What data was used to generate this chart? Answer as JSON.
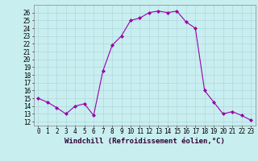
{
  "title": "",
  "xlabel": "Windchill (Refroidissement éolien,°C)",
  "x": [
    0,
    1,
    2,
    3,
    4,
    5,
    6,
    7,
    8,
    9,
    10,
    11,
    12,
    13,
    14,
    15,
    16,
    17,
    18,
    19,
    20,
    21,
    22,
    23
  ],
  "y": [
    15.0,
    14.5,
    13.8,
    13.0,
    14.0,
    14.3,
    12.8,
    18.5,
    21.8,
    23.0,
    25.0,
    25.3,
    26.0,
    26.2,
    26.0,
    26.2,
    24.8,
    24.0,
    16.0,
    14.5,
    13.0,
    13.3,
    12.8,
    12.2
  ],
  "line_color": "#9900aa",
  "marker": "D",
  "marker_size": 2,
  "bg_color": "#c8eef0",
  "ylim": [
    11.5,
    27.0
  ],
  "xlim": [
    -0.5,
    23.5
  ],
  "yticks": [
    12,
    13,
    14,
    15,
    16,
    17,
    18,
    19,
    20,
    21,
    22,
    23,
    24,
    25,
    26
  ],
  "xticks": [
    0,
    1,
    2,
    3,
    4,
    5,
    6,
    7,
    8,
    9,
    10,
    11,
    12,
    13,
    14,
    15,
    16,
    17,
    18,
    19,
    20,
    21,
    22,
    23
  ],
  "grid_color": "#b0d8dc",
  "tick_fontsize": 5.5,
  "xlabel_fontsize": 6.5,
  "title_fontsize": 6
}
